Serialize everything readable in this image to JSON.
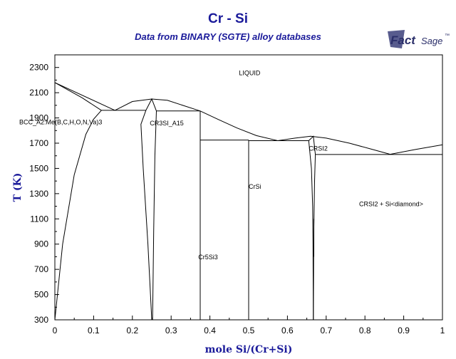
{
  "header": {
    "title": "Cr - Si",
    "subtitle": "Data from BINARY (SGTE) alloy databases",
    "logo_fact": "Fact",
    "logo_sage": "Sage",
    "logo_tm": "™"
  },
  "colors": {
    "title": "#1a1a9a",
    "axes": "#000000",
    "lines": "#000000"
  },
  "chart_data": {
    "type": "line",
    "chart_kind": "binary phase diagram",
    "xlabel": "mole Si/(Cr+Si)",
    "ylabel": "T (K)",
    "xlim": [
      0,
      1
    ],
    "ylim": [
      300,
      2400
    ],
    "xticks": [
      "0",
      "0.1",
      "0.2",
      "0.3",
      "0.4",
      "0.5",
      "0.6",
      "0.7",
      "0.8",
      "0.9",
      "1"
    ],
    "yticks": [
      "300",
      "500",
      "700",
      "900",
      "1100",
      "1300",
      "1500",
      "1700",
      "1900",
      "2100",
      "2300"
    ],
    "grid": false,
    "labels": [
      {
        "text": "LIQUID",
        "x": 0.475,
        "y": 2240
      },
      {
        "text": "BCC_A2:Me(B,C,H,O,N,Va)3",
        "x": 0.0,
        "y": 1850
      },
      {
        "text": "CR3SI_A15",
        "x": 0.245,
        "y": 1840
      },
      {
        "text": "CRSI2",
        "x": 0.655,
        "y": 1640
      },
      {
        "text": "CrSi",
        "x": 0.5,
        "y": 1340
      },
      {
        "text": "CRSI2 + Si<diamond>",
        "x": 0.785,
        "y": 1200
      },
      {
        "text": "Cr5Si3",
        "x": 0.37,
        "y": 780
      }
    ],
    "series": [
      {
        "x": [
          0,
          0.07,
          0.12
        ],
        "y": [
          2180,
          2060,
          1960
        ]
      },
      {
        "x": [
          0,
          0.155
        ],
        "y": [
          2180,
          1960
        ]
      },
      {
        "x": [
          0,
          0.02,
          0.05,
          0.08,
          0.1,
          0.12
        ],
        "y": [
          300,
          900,
          1450,
          1770,
          1890,
          1960
        ]
      },
      {
        "x": [
          0.12,
          0.235
        ],
        "y": [
          1960,
          1960
        ]
      },
      {
        "x": [
          0.155,
          0.2,
          0.25,
          0.29,
          0.33,
          0.375
        ],
        "y": [
          1960,
          2030,
          2050,
          2040,
          2000,
          1955
        ]
      },
      {
        "x": [
          0.235,
          0.222,
          0.228,
          0.24,
          0.25
        ],
        "y": [
          1960,
          1850,
          1500,
          900,
          300
        ]
      },
      {
        "x": [
          0.235,
          0.25,
          0.262
        ],
        "y": [
          1960,
          2050,
          1955
        ]
      },
      {
        "x": [
          0.262,
          0.258,
          0.255,
          0.253,
          0.252
        ],
        "y": [
          1955,
          1600,
          1000,
          500,
          300
        ]
      },
      {
        "x": [
          0.262,
          0.375
        ],
        "y": [
          1955,
          1955
        ]
      },
      {
        "x": [
          0.375,
          0.375
        ],
        "y": [
          1955,
          300
        ]
      },
      {
        "x": [
          0.375,
          0.42,
          0.47,
          0.52,
          0.575
        ],
        "y": [
          1955,
          1890,
          1820,
          1760,
          1720
        ]
      },
      {
        "x": [
          0.375,
          0.5
        ],
        "y": [
          1725,
          1725
        ]
      },
      {
        "x": [
          0.5,
          0.5
        ],
        "y": [
          1725,
          300
        ]
      },
      {
        "x": [
          0.5,
          0.575
        ],
        "y": [
          1720,
          1720
        ]
      },
      {
        "x": [
          0.575,
          0.62,
          0.66,
          0.7,
          0.76,
          0.82,
          0.865
        ],
        "y": [
          1720,
          1740,
          1755,
          1740,
          1700,
          1650,
          1612
        ]
      },
      {
        "x": [
          0.575,
          0.655
        ],
        "y": [
          1720,
          1720
        ]
      },
      {
        "x": [
          0.655,
          0.662,
          0.665,
          0.666,
          0.667
        ],
        "y": [
          1720,
          1500,
          1200,
          900,
          300
        ]
      },
      {
        "x": [
          0.655,
          0.667,
          0.672
        ],
        "y": [
          1720,
          1755,
          1610
        ]
      },
      {
        "x": [
          0.672,
          0.67,
          0.668,
          0.667
        ],
        "y": [
          1610,
          1400,
          1000,
          300
        ]
      },
      {
        "x": [
          0.668,
          0.668
        ],
        "y": [
          1100,
          800
        ]
      },
      {
        "x": [
          0.672,
          1
        ],
        "y": [
          1610,
          1610
        ]
      },
      {
        "x": [
          0.865,
          0.93,
          1
        ],
        "y": [
          1612,
          1650,
          1687
        ]
      }
    ]
  }
}
